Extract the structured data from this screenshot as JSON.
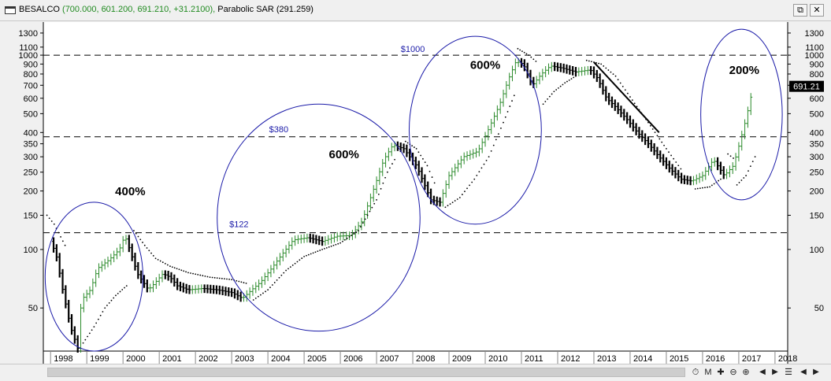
{
  "window": {
    "symbol": "BESALCO",
    "values": "(700.000, 601.200, 691.210, +31.2100),",
    "indicator": "Parabolic SAR (291.259)",
    "restore_icon": "restore-window-icon",
    "close_icon": "close-window-icon"
  },
  "toolbar": {
    "icons": [
      "status-icon",
      "chart-style-icon",
      "move-icon",
      "zoom-out-icon",
      "zoom-in-icon",
      "nav-left-icon",
      "nav-right-icon",
      "settings-icon"
    ],
    "chart_style_label": "M"
  },
  "colors": {
    "up_bar": "#2a8a2a",
    "down_bar": "#000000",
    "ellipse": "#1a1aa8",
    "annotation_text": "#1a1aa8",
    "last_price_bg": "#000000"
  },
  "chart_data": {
    "type": "line",
    "scale": "log",
    "series_kind": "monthly HLOC bars with Parabolic SAR dots",
    "y_ticks": [
      50,
      100,
      150,
      200,
      250,
      300,
      350,
      400,
      500,
      600,
      700,
      800,
      900,
      1000,
      1100,
      1300
    ],
    "ylim": [
      30,
      1400
    ],
    "x_ticks": [
      "1998",
      "1999",
      "2000",
      "2001",
      "2002",
      "2003",
      "2004",
      "2005",
      "2006",
      "2007",
      "2008",
      "2009",
      "2010",
      "2011",
      "2012",
      "2013",
      "2014",
      "2015",
      "2016",
      "2017",
      "2018"
    ],
    "last_price_label": "691.21",
    "price_path": [
      [
        1998.0,
        110
      ],
      [
        1998.15,
        95
      ],
      [
        1998.35,
        60
      ],
      [
        1998.55,
        40
      ],
      [
        1998.75,
        31
      ],
      [
        1998.85,
        55
      ],
      [
        1999.1,
        62
      ],
      [
        1999.3,
        80
      ],
      [
        1999.6,
        88
      ],
      [
        1999.9,
        100
      ],
      [
        2000.05,
        118
      ],
      [
        2000.2,
        98
      ],
      [
        2000.4,
        75
      ],
      [
        2000.7,
        62
      ],
      [
        2000.9,
        68
      ],
      [
        2001.1,
        75
      ],
      [
        2001.3,
        72
      ],
      [
        2001.5,
        65
      ],
      [
        2001.8,
        62
      ],
      [
        2002.2,
        63
      ],
      [
        2002.6,
        62
      ],
      [
        2003.0,
        60
      ],
      [
        2003.3,
        56
      ],
      [
        2003.55,
        62
      ],
      [
        2003.8,
        68
      ],
      [
        2004.1,
        80
      ],
      [
        2004.4,
        95
      ],
      [
        2004.7,
        112
      ],
      [
        2005.1,
        115
      ],
      [
        2005.5,
        110
      ],
      [
        2005.9,
        117
      ],
      [
        2006.3,
        118
      ],
      [
        2006.6,
        140
      ],
      [
        2006.9,
        200
      ],
      [
        2007.2,
        290
      ],
      [
        2007.45,
        345
      ],
      [
        2007.75,
        330
      ],
      [
        2008.1,
        270
      ],
      [
        2008.5,
        180
      ],
      [
        2008.75,
        175
      ],
      [
        2009.0,
        240
      ],
      [
        2009.4,
        300
      ],
      [
        2009.8,
        320
      ],
      [
        2010.1,
        420
      ],
      [
        2010.4,
        560
      ],
      [
        2010.65,
        760
      ],
      [
        2010.85,
        930
      ],
      [
        2011.05,
        900
      ],
      [
        2011.3,
        700
      ],
      [
        2011.55,
        800
      ],
      [
        2011.8,
        880
      ],
      [
        2012.1,
        860
      ],
      [
        2012.5,
        820
      ],
      [
        2012.9,
        840
      ],
      [
        2013.1,
        760
      ],
      [
        2013.35,
        600
      ],
      [
        2013.6,
        540
      ],
      [
        2013.9,
        470
      ],
      [
        2014.2,
        400
      ],
      [
        2014.5,
        350
      ],
      [
        2014.8,
        300
      ],
      [
        2015.1,
        260
      ],
      [
        2015.4,
        230
      ],
      [
        2015.7,
        225
      ],
      [
        2016.0,
        240
      ],
      [
        2016.3,
        290
      ],
      [
        2016.6,
        240
      ],
      [
        2016.85,
        270
      ],
      [
        2017.0,
        340
      ],
      [
        2017.2,
        470
      ],
      [
        2017.4,
        691.21
      ]
    ],
    "sar_segments": [
      [
        [
          1997.9,
          150
        ],
        [
          1998.1,
          135
        ],
        [
          1998.4,
          105
        ]
      ],
      [
        [
          1998.9,
          33
        ],
        [
          1999.2,
          40
        ],
        [
          1999.5,
          50
        ],
        [
          1999.8,
          58
        ],
        [
          2000.1,
          65
        ]
      ],
      [
        [
          2000.3,
          125
        ],
        [
          2000.6,
          105
        ],
        [
          2000.9,
          90
        ],
        [
          2001.3,
          82
        ],
        [
          2001.8,
          76
        ],
        [
          2002.4,
          72
        ],
        [
          2003.0,
          70
        ],
        [
          2003.4,
          67
        ]
      ],
      [
        [
          2003.6,
          55
        ],
        [
          2004.0,
          62
        ],
        [
          2004.5,
          78
        ],
        [
          2005.0,
          92
        ],
        [
          2005.5,
          100
        ],
        [
          2006.0,
          108
        ],
        [
          2006.5,
          125
        ],
        [
          2007.0,
          180
        ],
        [
          2007.3,
          250
        ],
        [
          2007.5,
          290
        ]
      ],
      [
        [
          2007.8,
          360
        ],
        [
          2008.1,
          330
        ],
        [
          2008.4,
          270
        ],
        [
          2008.6,
          220
        ]
      ],
      [
        [
          2008.9,
          165
        ],
        [
          2009.3,
          185
        ],
        [
          2009.7,
          230
        ],
        [
          2010.1,
          300
        ],
        [
          2010.5,
          450
        ],
        [
          2010.8,
          620
        ]
      ],
      [
        [
          2010.9,
          1080
        ],
        [
          2011.2,
          1000
        ],
        [
          2011.4,
          930
        ]
      ],
      [
        [
          2011.6,
          560
        ],
        [
          2011.9,
          650
        ],
        [
          2012.2,
          720
        ],
        [
          2012.5,
          780
        ]
      ],
      [
        [
          2012.8,
          940
        ],
        [
          2013.2,
          900
        ],
        [
          2013.6,
          780
        ],
        [
          2014.0,
          610
        ],
        [
          2014.5,
          450
        ],
        [
          2015.0,
          330
        ],
        [
          2015.4,
          260
        ]
      ],
      [
        [
          2015.8,
          205
        ],
        [
          2016.2,
          210
        ],
        [
          2016.5,
          230
        ]
      ],
      [
        [
          2016.7,
          310
        ],
        [
          2016.85,
          295
        ]
      ],
      [
        [
          2016.95,
          215
        ],
        [
          2017.2,
          240
        ],
        [
          2017.45,
          300
        ]
      ]
    ],
    "trendline": [
      [
        2013.0,
        920
      ],
      [
        2014.8,
        400
      ]
    ],
    "horizontal_lines": [
      {
        "value": 1000,
        "label": "$1000"
      },
      {
        "value": 380,
        "label": "$380"
      },
      {
        "value": 122,
        "label": "$122"
      }
    ],
    "annotations": [
      {
        "text": "400%",
        "x": 2000.2,
        "y": 190
      },
      {
        "text": "600%",
        "x": 2006.1,
        "y": 295
      },
      {
        "text": "600%",
        "x": 2010.0,
        "y": 850
      },
      {
        "text": "200%",
        "x": 2017.15,
        "y": 800
      }
    ],
    "ellipses": [
      {
        "x_from": 1997.85,
        "x_to": 2000.55,
        "y_from": 30,
        "y_to": 175
      },
      {
        "x_from": 2002.6,
        "x_to": 2008.2,
        "y_from": 38,
        "y_to": 560
      },
      {
        "x_from": 2007.9,
        "x_to": 2011.55,
        "y_from": 135,
        "y_to": 1250
      },
      {
        "x_from": 2015.95,
        "x_to": 2018.2,
        "y_from": 180,
        "y_to": 1360
      }
    ]
  }
}
